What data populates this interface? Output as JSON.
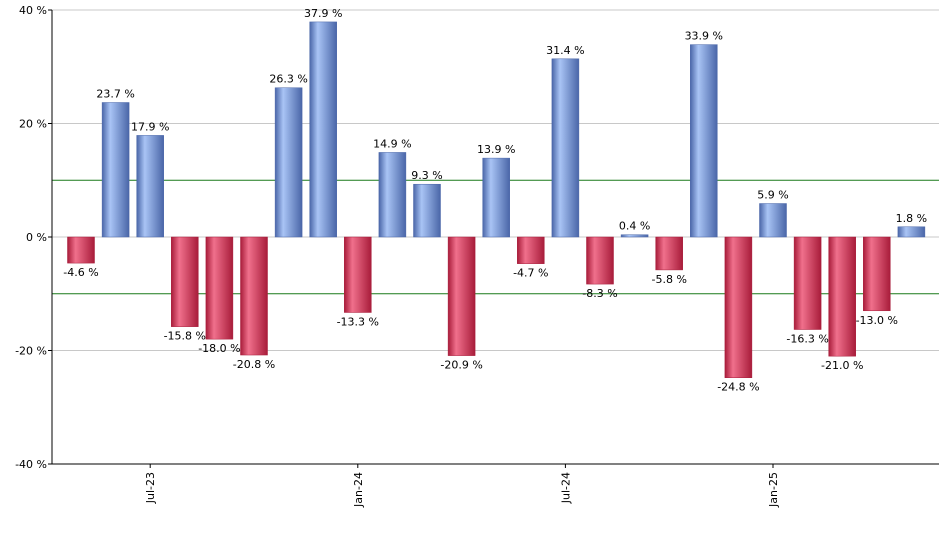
{
  "chart_data": {
    "type": "bar",
    "title": "",
    "xlabel": "",
    "ylabel": "",
    "ylim": [
      -40,
      40
    ],
    "yticks": [
      {
        "value": 40,
        "label": "40 %"
      },
      {
        "value": 20,
        "label": "20 %"
      },
      {
        "value": 0,
        "label": "0 %"
      },
      {
        "value": -20,
        "label": "-20 %"
      },
      {
        "value": -40,
        "label": "-40 %"
      }
    ],
    "reference_lines": [
      10,
      -10
    ],
    "xticks": [
      {
        "index": 2,
        "label": "Jul-23"
      },
      {
        "index": 8,
        "label": "Jan-24"
      },
      {
        "index": 14,
        "label": "Jul-24"
      },
      {
        "index": 20,
        "label": "Jan-25"
      }
    ],
    "values": [
      -4.6,
      23.7,
      17.9,
      -15.8,
      -18.0,
      -20.8,
      26.3,
      37.9,
      -13.3,
      14.9,
      9.3,
      -20.9,
      13.9,
      -4.7,
      31.4,
      -8.3,
      0.4,
      -5.8,
      33.9,
      -24.8,
      5.9,
      -16.3,
      -21.0,
      -13.0,
      1.8
    ],
    "labels": [
      "-4.6 %",
      "23.7 %",
      "17.9 %",
      "-15.8 %",
      "-18.0 %",
      "-20.8 %",
      "26.3 %",
      "37.9 %",
      "-13.3 %",
      "14.9 %",
      "9.3 %",
      "-20.9 %",
      "13.9 %",
      "-4.7 %",
      "31.4 %",
      "-8.3 %",
      "0.4 %",
      "-5.8 %",
      "33.9 %",
      "-24.8 %",
      "5.9 %",
      "-16.3 %",
      "-21.0 %",
      "-13.0 %",
      "1.8 %"
    ],
    "colors": {
      "positive_light": "#a9c4f5",
      "positive_dark": "#4a66a8",
      "negative_light": "#f0708c",
      "negative_dark": "#a81c3a",
      "grid": "#c8c8c8",
      "reference": "#1a7a1a",
      "axis": "#000000"
    }
  }
}
